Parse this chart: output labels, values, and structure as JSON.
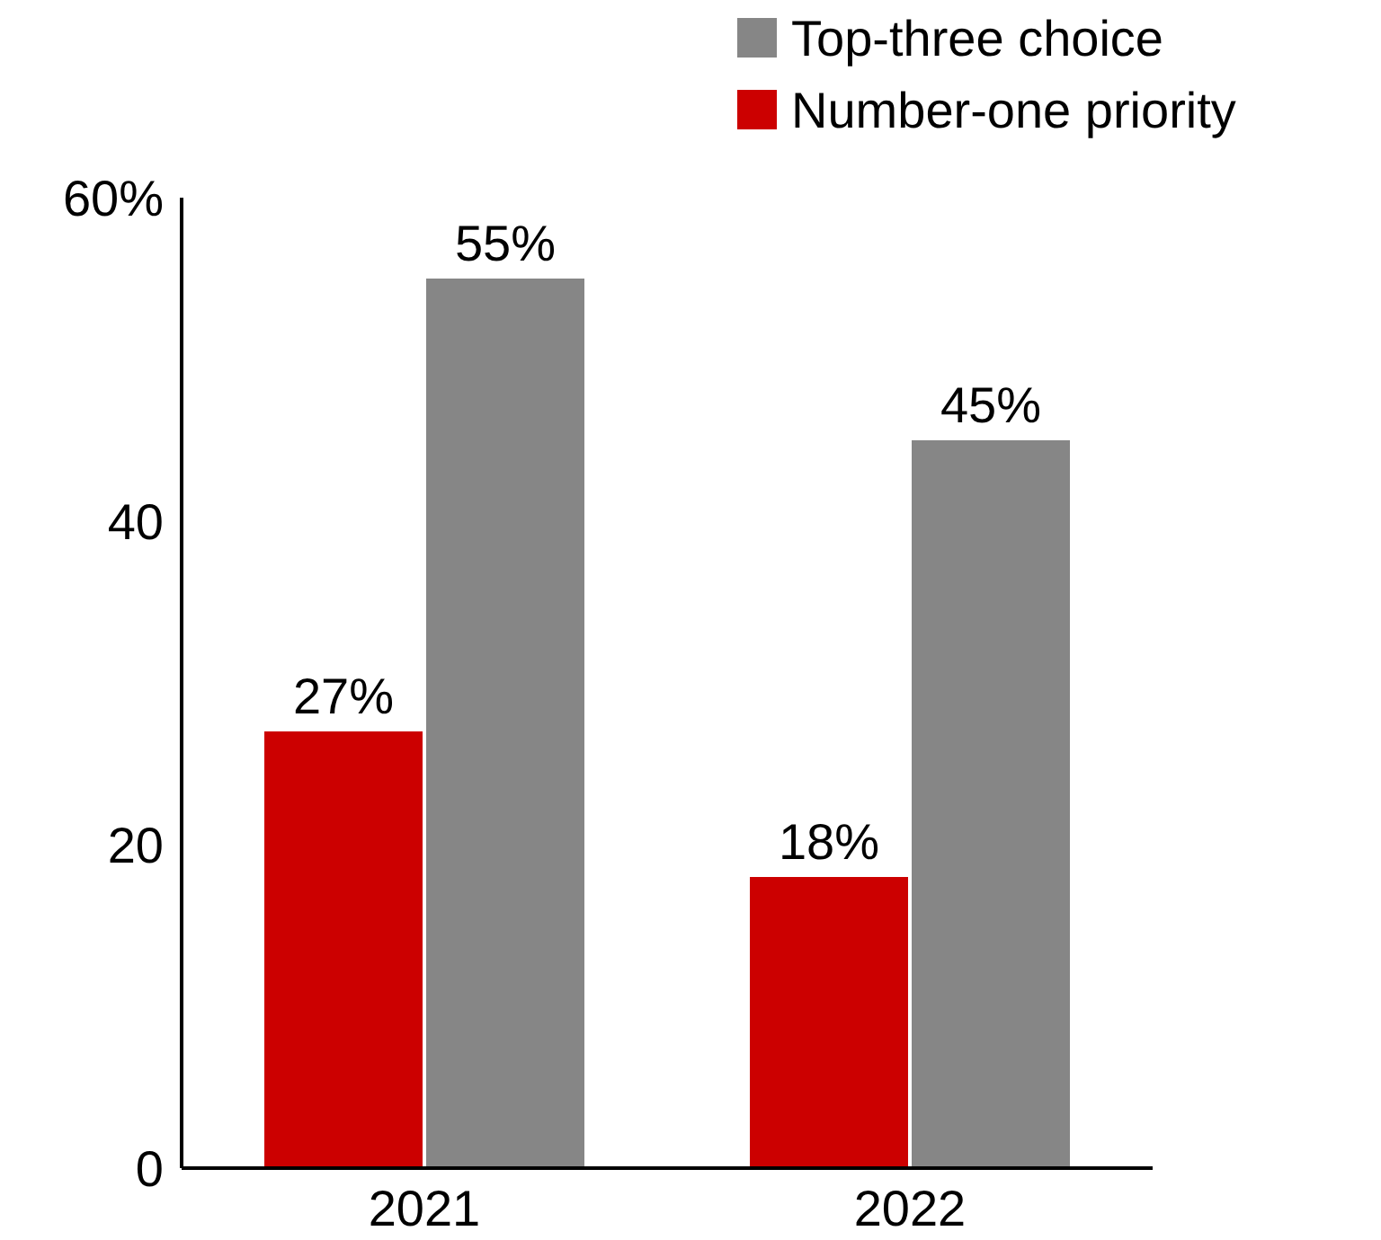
{
  "chart_data": {
    "type": "bar",
    "categories": [
      "2021",
      "2022"
    ],
    "series": [
      {
        "name": "Number-one priority",
        "color": "#cc0000",
        "values": [
          27,
          18
        ],
        "value_labels": [
          "27%",
          "18%"
        ]
      },
      {
        "name": "Top-three choice",
        "color": "#868686",
        "values": [
          55,
          45
        ],
        "value_labels": [
          "55%",
          "45%"
        ]
      }
    ],
    "ylim": [
      0,
      60
    ],
    "yticks": [
      0,
      20,
      40,
      {
        "value": 60,
        "label": "60%"
      }
    ],
    "grid": false,
    "legend": "top right"
  }
}
